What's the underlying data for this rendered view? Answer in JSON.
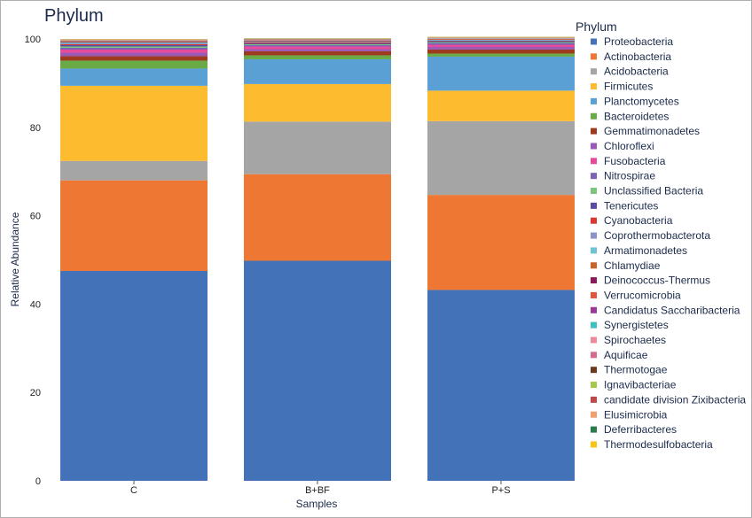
{
  "chart_data": {
    "type": "bar",
    "stacked": true,
    "title": "Phylum",
    "xlabel": "Samples",
    "ylabel": "Relative Abundance",
    "ylim": [
      0,
      100
    ],
    "yticks": [
      0,
      20,
      40,
      60,
      80,
      100
    ],
    "grid": false,
    "legend_title": "Phylum",
    "legend_position": "right",
    "categories": [
      "C",
      "B+BF",
      "P+S"
    ],
    "series": [
      {
        "name": "Proteobacteria",
        "color": "#4472b8",
        "values": [
          47.5,
          49.8,
          43.2
        ]
      },
      {
        "name": "Actinobacteria",
        "color": "#ee7733",
        "values": [
          20.5,
          19.6,
          21.5
        ]
      },
      {
        "name": "Acidobacteria",
        "color": "#a5a5a5",
        "values": [
          4.4,
          11.9,
          16.7
        ]
      },
      {
        "name": "Firmicutes",
        "color": "#fdbb2f",
        "values": [
          17.0,
          8.5,
          6.9
        ]
      },
      {
        "name": "Planctomycetes",
        "color": "#5aa0d4",
        "values": [
          3.9,
          5.6,
          7.7
        ]
      },
      {
        "name": "Bacteroidetes",
        "color": "#6aaa46",
        "values": [
          1.8,
          0.9,
          0.7
        ]
      },
      {
        "name": "Gemmatimonadetes",
        "color": "#9e3a1e",
        "values": [
          1.0,
          0.9,
          0.9
        ]
      },
      {
        "name": "Chloroflexi",
        "color": "#9b59b6",
        "values": [
          0.8,
          0.5,
          0.6
        ]
      },
      {
        "name": "Fusobacteria",
        "color": "#e84a9a",
        "values": [
          0.7,
          0.6,
          0.5
        ]
      },
      {
        "name": "Nitrospirae",
        "color": "#7b63b5",
        "values": [
          0.4,
          0.3,
          0.4
        ]
      },
      {
        "name": "Unclassified Bacteria",
        "color": "#7bc67b",
        "values": [
          0.3,
          0.2,
          0.2
        ]
      },
      {
        "name": "Tenericutes",
        "color": "#5a4aa3",
        "values": [
          0.3,
          0.2,
          0.2
        ]
      },
      {
        "name": "Cyanobacteria",
        "color": "#d8382e",
        "values": [
          0.2,
          0.2,
          0.1
        ]
      },
      {
        "name": "Coprothermobacterota",
        "color": "#8a94c8",
        "values": [
          0.2,
          0.1,
          0.1
        ]
      },
      {
        "name": "Armatimonadetes",
        "color": "#6ec3d0",
        "values": [
          0.2,
          0.1,
          0.1
        ]
      },
      {
        "name": "Chlamydiae",
        "color": "#c8642a",
        "values": [
          0.1,
          0.1,
          0.1
        ]
      },
      {
        "name": "Deinococcus-Thermus",
        "color": "#8a1a5a",
        "values": [
          0.1,
          0.1,
          0.05
        ]
      },
      {
        "name": "Verrucomicrobia",
        "color": "#e2563f",
        "values": [
          0.1,
          0.05,
          0.05
        ]
      },
      {
        "name": "Candidatus Saccharibacteria",
        "color": "#9a3b9a",
        "values": [
          0.05,
          0.05,
          0.05
        ]
      },
      {
        "name": "Synergistetes",
        "color": "#3fbfc0",
        "values": [
          0.05,
          0.05,
          0.05
        ]
      },
      {
        "name": "Spirochaetes",
        "color": "#f08a9a",
        "values": [
          0.05,
          0.05,
          0.05
        ]
      },
      {
        "name": "Aquificae",
        "color": "#d46a92",
        "values": [
          0.05,
          0.05,
          0.05
        ]
      },
      {
        "name": "Thermotogae",
        "color": "#6b3a1e",
        "values": [
          0.05,
          0.05,
          0.05
        ]
      },
      {
        "name": "Ignavibacteriae",
        "color": "#a6c84a",
        "values": [
          0.05,
          0.05,
          0.05
        ]
      },
      {
        "name": "candidate division Zixibacteria",
        "color": "#c04848",
        "values": [
          0.05,
          0.05,
          0.05
        ]
      },
      {
        "name": "Elusimicrobia",
        "color": "#f0a070",
        "values": [
          0.05,
          0.05,
          0.05
        ]
      },
      {
        "name": "Deferribacteres",
        "color": "#2a7a4a",
        "values": [
          0.05,
          0.05,
          0.05
        ]
      },
      {
        "name": "Thermodesulfobacteria",
        "color": "#f5c518",
        "values": [
          0.05,
          0.05,
          0.05
        ]
      }
    ]
  }
}
